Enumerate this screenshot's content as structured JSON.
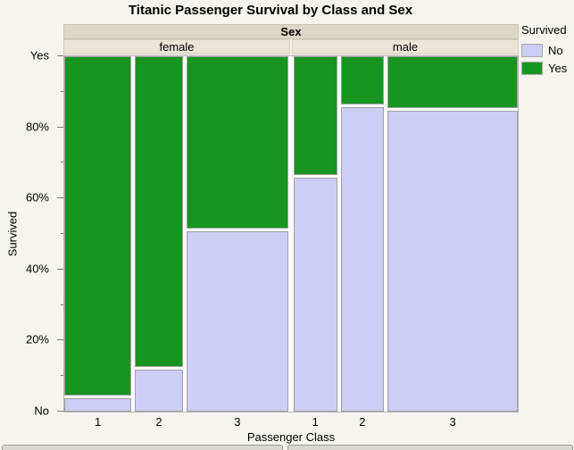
{
  "page": {
    "background": "#f5f5ee"
  },
  "chart_data": {
    "type": "mosaic",
    "title": "Titanic Passenger Survival by Class and Sex",
    "group_axis": "Sex",
    "xlabel": "Passenger Class",
    "ylabel": "Survived",
    "y_major_ticks": [
      {
        "label": "Yes",
        "value": 100
      },
      {
        "label": "80%",
        "value": 80
      },
      {
        "label": "60%",
        "value": 60
      },
      {
        "label": "40%",
        "value": 40
      },
      {
        "label": "20%",
        "value": 20
      },
      {
        "label": "No",
        "value": 0
      }
    ],
    "y_minor_tick_values": [
      90,
      70,
      50,
      30,
      10
    ],
    "groups": [
      {
        "name": "female",
        "classes": [
          "1",
          "2",
          "3"
        ],
        "width_share_pct": [
          31,
          22,
          47
        ],
        "yes_pct": [
          96,
          88,
          49
        ],
        "no_pct": [
          4,
          12,
          51
        ]
      },
      {
        "name": "male",
        "classes": [
          "1",
          "2",
          "3"
        ],
        "width_share_pct": [
          20,
          20,
          60
        ],
        "yes_pct": [
          34,
          14,
          15
        ],
        "no_pct": [
          66,
          86,
          85
        ]
      }
    ],
    "legend": {
      "title": "Survived",
      "entries": [
        {
          "label": "No",
          "color": "#cdcdf5"
        },
        {
          "label": "Yes",
          "color": "#189421"
        }
      ]
    }
  }
}
